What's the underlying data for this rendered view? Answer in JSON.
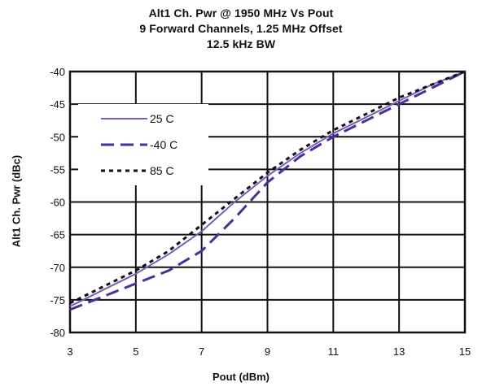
{
  "chart_data": {
    "type": "line",
    "title_lines": [
      "Alt1 Ch. Pwr @ 1950 MHz Vs Pout",
      "9 Forward Channels, 1.25 MHz Offset",
      "12.5 kHz BW"
    ],
    "xlabel": "Pout (dBm)",
    "ylabel": "Alt1 Ch. Pwr (dBc)",
    "xlim": [
      3,
      15
    ],
    "ylim": [
      -80,
      -40
    ],
    "xticks": [
      3,
      5,
      7,
      9,
      11,
      13,
      15
    ],
    "yticks": [
      -40,
      -45,
      -50,
      -55,
      -60,
      -65,
      -70,
      -75,
      -80
    ],
    "grid": true,
    "legend_position": "top-left",
    "series": [
      {
        "name": "25 C",
        "style": "solid",
        "color": "#7a5cb8",
        "x": [
          3,
          4,
          5,
          6,
          7,
          8,
          9,
          10,
          11,
          12,
          13,
          14,
          15
        ],
        "y": [
          -76,
          -73.5,
          -71,
          -68,
          -64.5,
          -60,
          -56,
          -52.5,
          -49.5,
          -47,
          -44.5,
          -42,
          -40
        ]
      },
      {
        "name": "-40 C",
        "style": "dashed",
        "color": "#4b2e9a",
        "x": [
          3,
          4,
          5,
          6,
          7,
          8,
          9,
          10,
          11,
          12,
          13,
          14,
          15
        ],
        "y": [
          -76.5,
          -74.5,
          -72.5,
          -70.5,
          -67.5,
          -62.5,
          -57,
          -53,
          -50,
          -47.5,
          -45,
          -42.5,
          -40
        ]
      },
      {
        "name": "85 C",
        "style": "dotted",
        "color": "#111111",
        "x": [
          3,
          4,
          5,
          6,
          7,
          8,
          9,
          10,
          11,
          12,
          13,
          14,
          15
        ],
        "y": [
          -75.5,
          -73,
          -70.5,
          -67.5,
          -63.5,
          -59.5,
          -55.5,
          -52,
          -49,
          -46.5,
          -44,
          -42,
          -40
        ]
      }
    ]
  }
}
